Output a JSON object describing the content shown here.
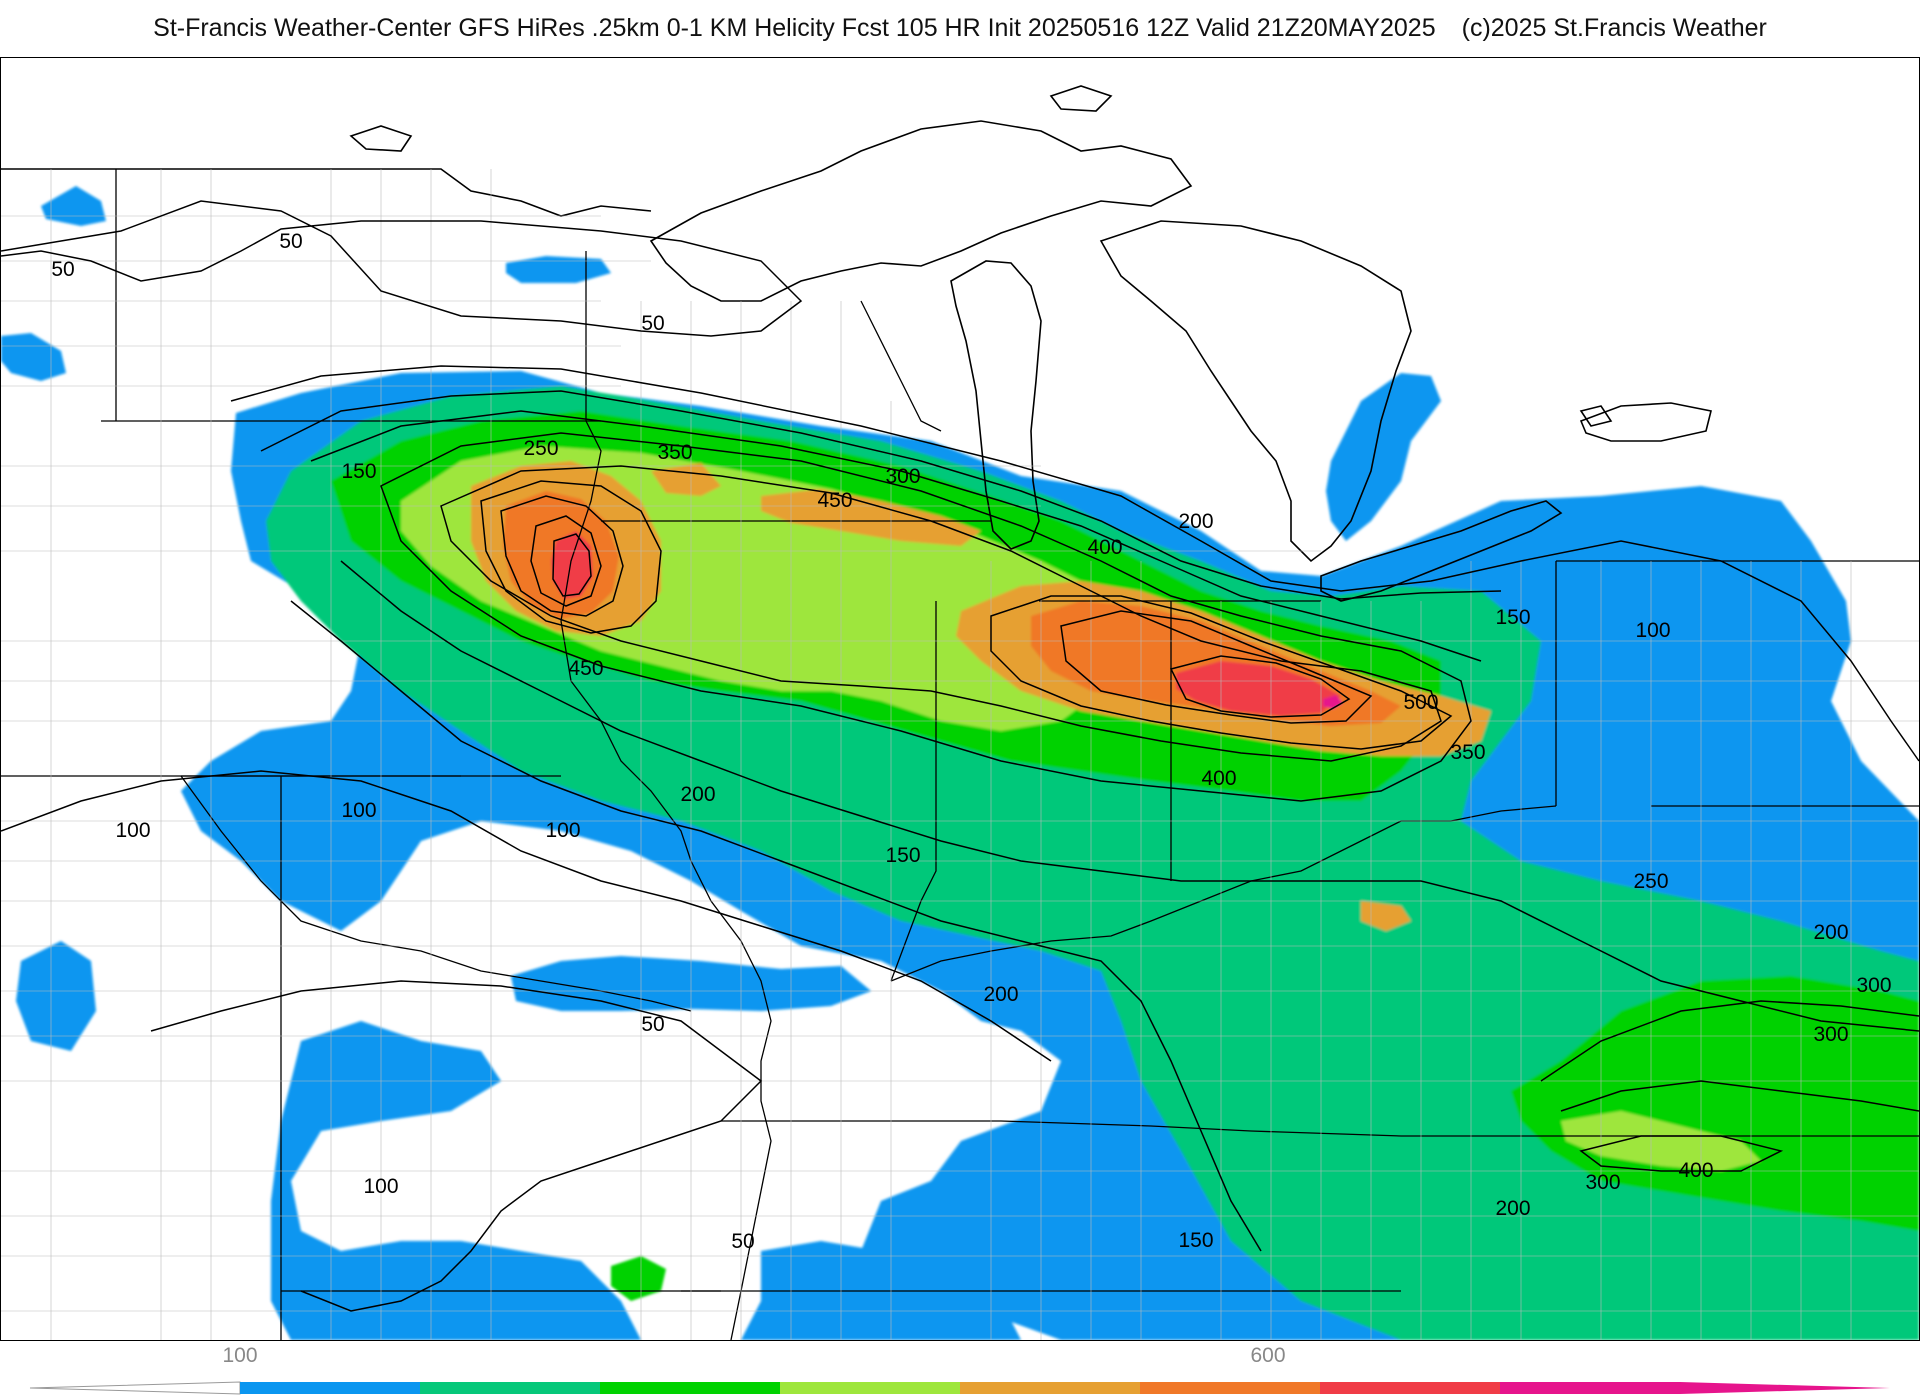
{
  "header": {
    "title": "St-Francis Weather-Center GFS HiRes .25km 0-1 KM Helicity Fcst 105 HR Init 20250516 12Z  Valid 21Z20MAY2025",
    "copyright": "(c)2025 St.Francis Weather"
  },
  "colorbar": {
    "tick_labels": [
      "100",
      "600"
    ],
    "colors": [
      "#0a96f0",
      "#06c87a",
      "#00d200",
      "#9ee63c",
      "#e6a032",
      "#f07828",
      "#f03c46",
      "#e6148c"
    ]
  },
  "contour_labels": [
    "50",
    "50",
    "50",
    "50",
    "50",
    "100",
    "100",
    "100",
    "100",
    "100",
    "150",
    "150",
    "150",
    "150",
    "200",
    "200",
    "200",
    "200",
    "200",
    "250",
    "250",
    "300",
    "300",
    "300",
    "300",
    "350",
    "350",
    "400",
    "400",
    "400",
    "450",
    "450",
    "500"
  ]
}
